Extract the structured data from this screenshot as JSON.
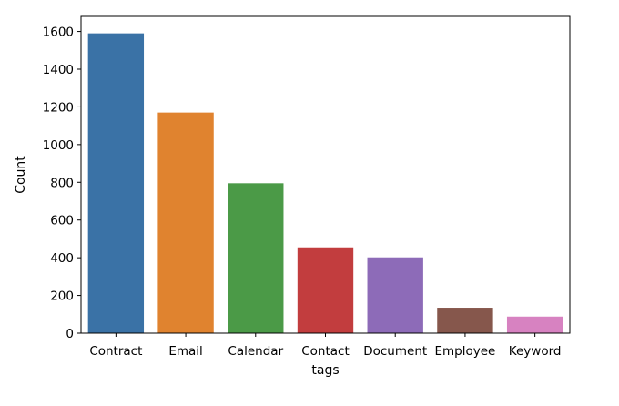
{
  "chart_data": {
    "type": "bar",
    "title": "",
    "xlabel": "tags",
    "ylabel": "Count",
    "categories": [
      "Contract",
      "Email",
      "Calendar",
      "Contact",
      "Document",
      "Employee",
      "Keyword"
    ],
    "values": [
      1590,
      1170,
      795,
      455,
      402,
      135,
      88
    ],
    "colors": [
      "#3a72a6",
      "#e0832f",
      "#4b9a47",
      "#c23d3e",
      "#8d6bb8",
      "#86574c",
      "#d782c1"
    ],
    "ylim": [
      0,
      1680
    ],
    "yticks": [
      0,
      200,
      400,
      600,
      800,
      1000,
      1200,
      1400,
      1600
    ],
    "grid": false,
    "legend": "none"
  }
}
